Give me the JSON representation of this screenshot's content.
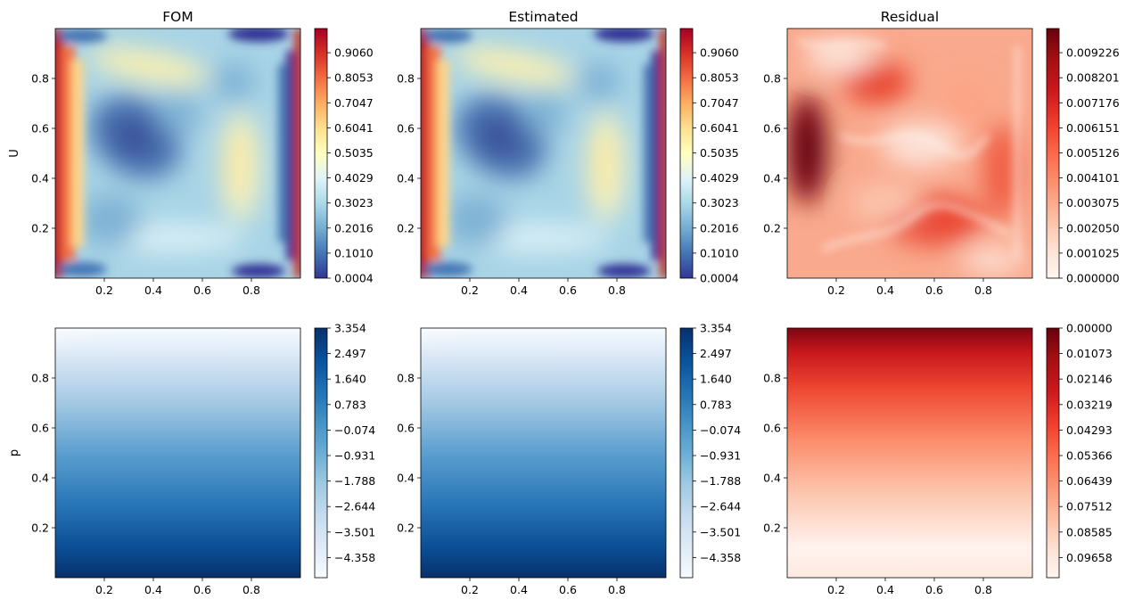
{
  "chart_data": [
    {
      "type": "heatmap",
      "title": "FOM",
      "ylabel": "U",
      "xlabel": "",
      "field": "velocity-fom",
      "colormap": "RdYlBu_r",
      "xlim": [
        0,
        1
      ],
      "ylim": [
        0,
        1
      ],
      "xticks": [
        "0.2",
        "0.4",
        "0.6",
        "0.8"
      ],
      "yticks": [
        "0.2",
        "0.4",
        "0.6",
        "0.8"
      ],
      "xtick_values": [
        0.2,
        0.4,
        0.6,
        0.8
      ],
      "ytick_values": [
        0.2,
        0.4,
        0.6,
        0.8
      ],
      "colorbar": {
        "range": [
          0.0004,
          1.0
        ],
        "ticks": [
          "0.0004",
          "0.1010",
          "0.2016",
          "0.3023",
          "0.4029",
          "0.5035",
          "0.6041",
          "0.7047",
          "0.8053",
          "0.9060"
        ]
      }
    },
    {
      "type": "heatmap",
      "title": "Estimated",
      "ylabel": "",
      "xlabel": "",
      "field": "velocity-est",
      "colormap": "RdYlBu_r",
      "xlim": [
        0,
        1
      ],
      "ylim": [
        0,
        1
      ],
      "xticks": [
        "0.2",
        "0.4",
        "0.6",
        "0.8"
      ],
      "yticks": [
        "0.2",
        "0.4",
        "0.6",
        "0.8"
      ],
      "xtick_values": [
        0.2,
        0.4,
        0.6,
        0.8
      ],
      "ytick_values": [
        0.2,
        0.4,
        0.6,
        0.8
      ],
      "colorbar": {
        "range": [
          0.0004,
          1.0
        ],
        "ticks": [
          "0.0004",
          "0.1010",
          "0.2016",
          "0.3023",
          "0.4029",
          "0.5035",
          "0.6041",
          "0.7047",
          "0.8053",
          "0.9060"
        ]
      }
    },
    {
      "type": "heatmap",
      "title": "Residual",
      "ylabel": "",
      "xlabel": "",
      "field": "velocity-residual",
      "colormap": "Reds",
      "xlim": [
        0,
        1
      ],
      "ylim": [
        0,
        1
      ],
      "xticks": [
        "0.2",
        "0.4",
        "0.6",
        "0.8"
      ],
      "yticks": [
        "0.2",
        "0.4",
        "0.6",
        "0.8"
      ],
      "xtick_values": [
        0.2,
        0.4,
        0.6,
        0.8
      ],
      "ytick_values": [
        0.2,
        0.4,
        0.6,
        0.8
      ],
      "colorbar": {
        "range": [
          0.0,
          0.01025
        ],
        "ticks": [
          "0.000000",
          "0.001025",
          "0.002050",
          "0.003075",
          "0.004101",
          "0.005126",
          "0.006151",
          "0.007176",
          "0.008201",
          "0.009226"
        ]
      }
    },
    {
      "type": "heatmap",
      "title": "",
      "ylabel": "p",
      "xlabel": "",
      "field": "pressure-fom",
      "colormap": "Blues",
      "xlim": [
        0,
        1
      ],
      "ylim": [
        0,
        1
      ],
      "xticks": [
        "0.2",
        "0.4",
        "0.6",
        "0.8"
      ],
      "yticks": [
        "0.2",
        "0.4",
        "0.6",
        "0.8"
      ],
      "xtick_values": [
        0.2,
        0.4,
        0.6,
        0.8
      ],
      "ytick_values": [
        0.2,
        0.4,
        0.6,
        0.8
      ],
      "colorbar": {
        "range": [
          -4.93,
          3.45
        ],
        "ticks": [
          "3.354",
          "2.497",
          "1.640",
          "0.783",
          "−0.074",
          "−0.931",
          "−1.788",
          "−2.644",
          "−3.501",
          "−4.358"
        ]
      }
    },
    {
      "type": "heatmap",
      "title": "",
      "ylabel": "",
      "xlabel": "",
      "field": "pressure-est",
      "colormap": "Blues",
      "xlim": [
        0,
        1
      ],
      "ylim": [
        0,
        1
      ],
      "xticks": [
        "0.2",
        "0.4",
        "0.6",
        "0.8"
      ],
      "yticks": [
        "0.2",
        "0.4",
        "0.6",
        "0.8"
      ],
      "xtick_values": [
        0.2,
        0.4,
        0.6,
        0.8
      ],
      "ytick_values": [
        0.2,
        0.4,
        0.6,
        0.8
      ],
      "colorbar": {
        "range": [
          -4.93,
          3.45
        ],
        "ticks": [
          "3.354",
          "2.497",
          "1.640",
          "0.783",
          "−0.074",
          "−0.931",
          "−1.788",
          "−2.644",
          "−3.501",
          "−4.358"
        ]
      }
    },
    {
      "type": "heatmap",
      "title": "",
      "ylabel": "",
      "xlabel": "",
      "field": "pressure-residual",
      "colormap": "Reds",
      "xlim": [
        0,
        1
      ],
      "ylim": [
        0,
        1
      ],
      "xticks": [
        "0.2",
        "0.4",
        "0.6",
        "0.8"
      ],
      "yticks": [
        "0.2",
        "0.4",
        "0.6",
        "0.8"
      ],
      "xtick_values": [
        0.2,
        0.4,
        0.6,
        0.8
      ],
      "ytick_values": [
        0.2,
        0.4,
        0.6,
        0.8
      ],
      "colorbar": {
        "range": [
          0.0,
          0.1073
        ],
        "ticks": [
          "0.00000",
          "0.01073",
          "0.02146",
          "0.03219",
          "0.04293",
          "0.05366",
          "0.06439",
          "0.07512",
          "0.08585",
          "0.09658"
        ]
      }
    }
  ]
}
